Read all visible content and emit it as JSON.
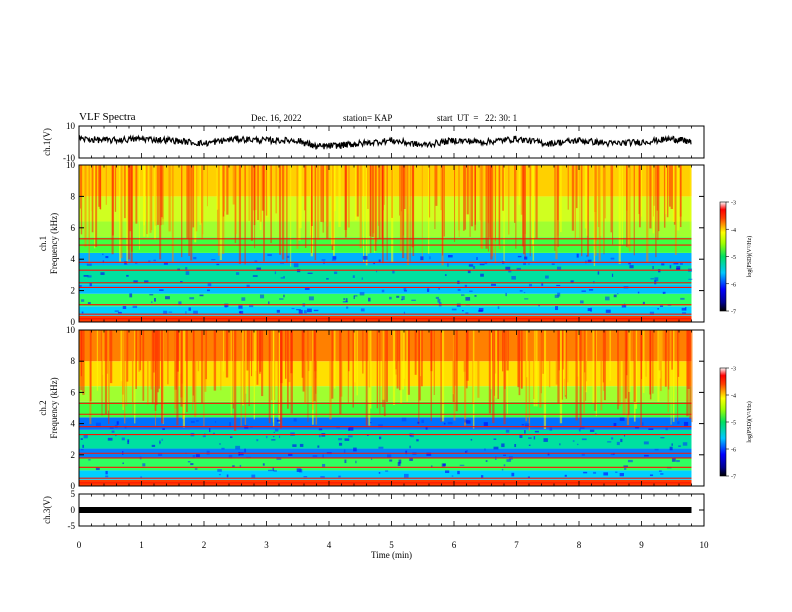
{
  "header": {
    "title": "VLF Spectra",
    "date": "Dec. 16, 2022",
    "station": "station= KAP",
    "start_ut": "start  UT  =   22: 30: 1"
  },
  "chart_data": [
    {
      "type": "line",
      "name": "ch1-waveform",
      "ylabel": "ch.1(V)",
      "ylim": [
        -10,
        10
      ],
      "yticks": [
        "10",
        "-10"
      ],
      "xlim": [
        0,
        10
      ],
      "description_values": "amplitude trace fluctuating roughly between -4 and 4 V over 0 to 9.8 min",
      "x": [
        0,
        0.5,
        1,
        1.5,
        2,
        2.5,
        3,
        3.5,
        3.8,
        4.2,
        4.5,
        5,
        5.5,
        6,
        6.5,
        7,
        7.5,
        8,
        8.5,
        9,
        9.5,
        9.8
      ],
      "y": [
        2,
        1,
        2,
        1,
        -1,
        2,
        1,
        1,
        -3,
        -2,
        -1,
        1,
        -2,
        1,
        0,
        2,
        -1,
        1,
        -1,
        0,
        2,
        0
      ]
    },
    {
      "type": "heatmap",
      "name": "ch1-spectrogram",
      "ylabel_channel": "ch.1",
      "ylabel": "Frequency  (kHz)",
      "ylim": [
        0,
        10
      ],
      "yticks": [
        "0",
        "2",
        "4",
        "6",
        "8",
        "10"
      ],
      "xlim": [
        0,
        10
      ],
      "colorbar_label": "log(PSD)(V²/Hz)",
      "colorbar_ticks": [
        "-3",
        "-4",
        "-5",
        "-6",
        "-7"
      ],
      "colorbar_range": [
        -7,
        -3
      ]
    },
    {
      "type": "heatmap",
      "name": "ch2-spectrogram",
      "ylabel_channel": "ch.2",
      "ylabel": "Frequency  (kHz)",
      "ylim": [
        0,
        10
      ],
      "yticks": [
        "0",
        "2",
        "4",
        "6",
        "8",
        "10"
      ],
      "xlim": [
        0,
        10
      ],
      "colorbar_label": "log(PSD)(V²/Hz)",
      "colorbar_ticks": [
        "-3",
        "-4",
        "-5",
        "-6",
        "-7"
      ],
      "colorbar_range": [
        -7,
        -3
      ]
    },
    {
      "type": "line",
      "name": "ch3-waveform",
      "ylabel": "ch.3(V)",
      "ylim": [
        -5,
        5
      ],
      "yticks": [
        "5",
        "0",
        "-5"
      ],
      "xlim": [
        0,
        10
      ],
      "x": [
        0,
        9.8
      ],
      "y": [
        0,
        0
      ]
    }
  ],
  "xaxis": {
    "label": "Time  (min)",
    "ticks": [
      "0",
      "1",
      "2",
      "3",
      "4",
      "5",
      "6",
      "7",
      "8",
      "9",
      "10"
    ]
  }
}
